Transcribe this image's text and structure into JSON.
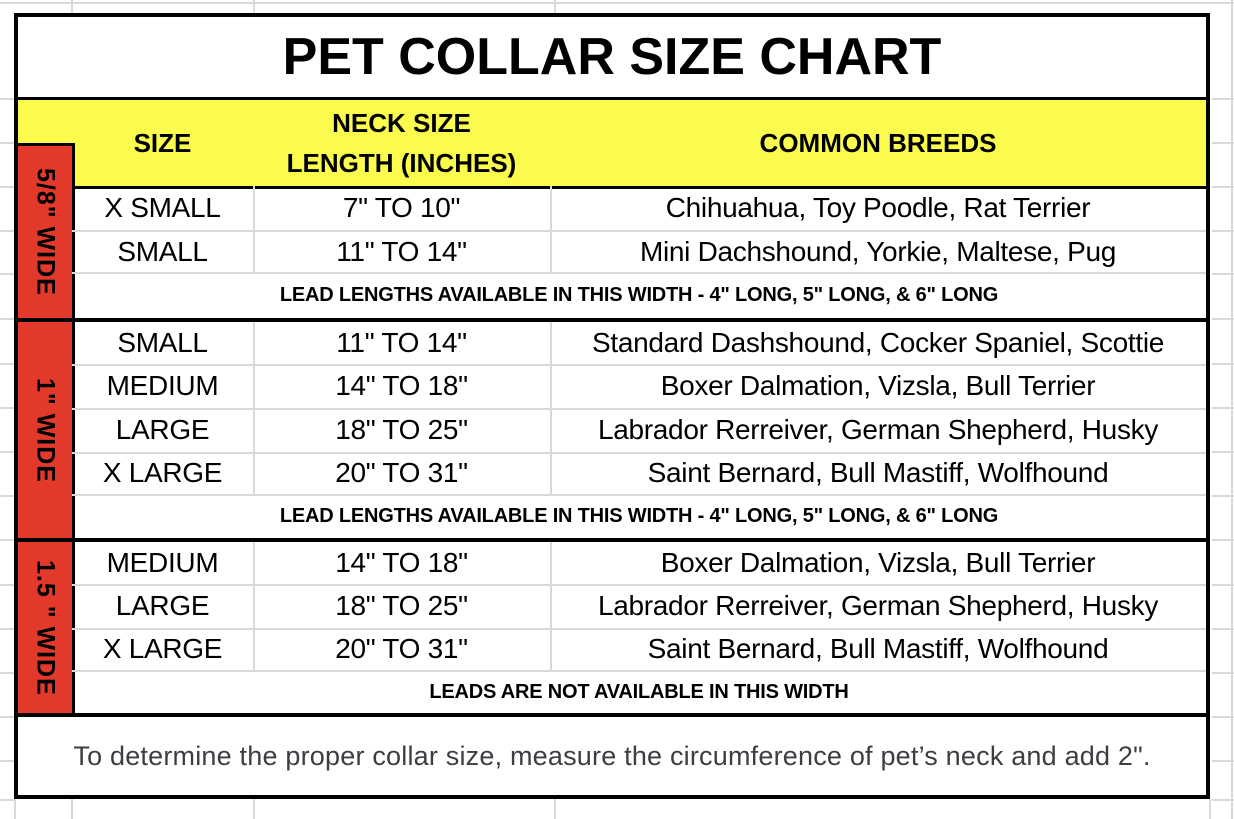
{
  "title": "PET COLLAR SIZE CHART",
  "header": {
    "size": "SIZE",
    "neck_line1": "NECK SIZE",
    "neck_line2": "LENGTH (INCHES)",
    "breeds": "COMMON BREEDS"
  },
  "sections": [
    {
      "width_label": "5/8\" WIDE",
      "rows": [
        {
          "size": "X SMALL",
          "neck": "7\" TO 10\"",
          "breeds": "Chihuahua, Toy Poodle, Rat Terrier"
        },
        {
          "size": "SMALL",
          "neck": "11\" TO 14\"",
          "breeds": "Mini Dachshound, Yorkie, Maltese, Pug"
        }
      ],
      "lead_note": "LEAD LENGTHS AVAILABLE IN THIS WIDTH - 4\" LONG, 5\" LONG, & 6\" LONG"
    },
    {
      "width_label": "1\" WIDE",
      "rows": [
        {
          "size": "SMALL",
          "neck": "11\" TO 14\"",
          "breeds": "Standard Dashshound, Cocker Spaniel, Scottie"
        },
        {
          "size": "MEDIUM",
          "neck": "14\" TO 18\"",
          "breeds": "Boxer Dalmation, Vizsla, Bull Terrier"
        },
        {
          "size": "LARGE",
          "neck": "18\" TO 25\"",
          "breeds": "Labrador Rerreiver, German Shepherd, Husky"
        },
        {
          "size": "X LARGE",
          "neck": "20\" TO 31\"",
          "breeds": "Saint Bernard, Bull Mastiff, Wolfhound"
        }
      ],
      "lead_note": "LEAD LENGTHS AVAILABLE IN THIS WIDTH  - 4\" LONG, 5\" LONG, & 6\" LONG"
    },
    {
      "width_label": "1.5 \" WIDE",
      "rows": [
        {
          "size": "MEDIUM",
          "neck": "14\" TO 18\"",
          "breeds": "Boxer Dalmation, Vizsla, Bull Terrier"
        },
        {
          "size": "LARGE",
          "neck": "18\" TO 25\"",
          "breeds": "Labrador Rerreiver, German Shepherd, Husky"
        },
        {
          "size": "X LARGE",
          "neck": "20\" TO 31\"",
          "breeds": "Saint Bernard, Bull Mastiff, Wolfhound"
        }
      ],
      "lead_note": "LEADS ARE NOT AVAILABLE IN THIS WIDTH"
    }
  ],
  "footer_note": "To determine the proper collar size, measure the circumference of pet’s neck and add 2\".",
  "colors": {
    "header_bg": "#fbfb4d",
    "width_bg": "#e3392b",
    "note_text": "#3b3e42",
    "gridline": "#d9d9d9",
    "border": "#000000"
  }
}
